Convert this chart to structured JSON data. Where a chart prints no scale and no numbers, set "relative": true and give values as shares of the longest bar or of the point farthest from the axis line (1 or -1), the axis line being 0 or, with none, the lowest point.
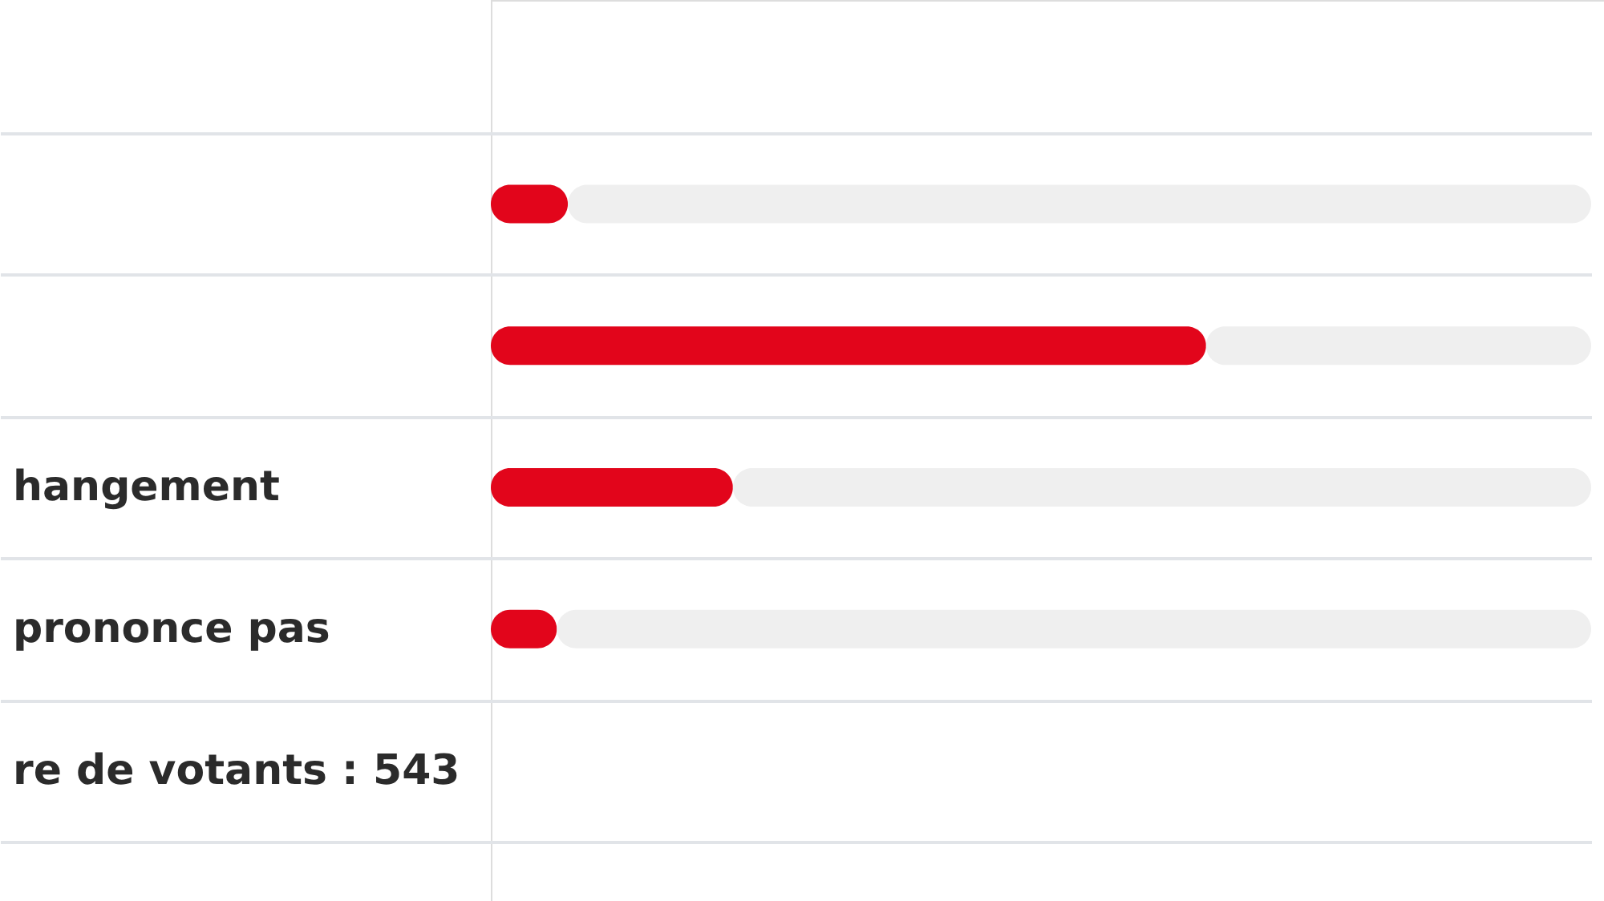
{
  "chart_data": {
    "type": "bar",
    "orientation": "horizontal",
    "stacked": true,
    "relative": true,
    "categories": [
      null,
      null,
      "hangement",
      "prononce pas"
    ],
    "series": [
      {
        "color": "#e2051b",
        "values": [
          0.07,
          0.65,
          0.22,
          0.06
        ]
      },
      {
        "color": "#efefef",
        "values": [
          0.93,
          0.35,
          0.78,
          0.94
        ]
      }
    ],
    "grid": "y",
    "annotations": [
      "re de votants : 543"
    ]
  }
}
